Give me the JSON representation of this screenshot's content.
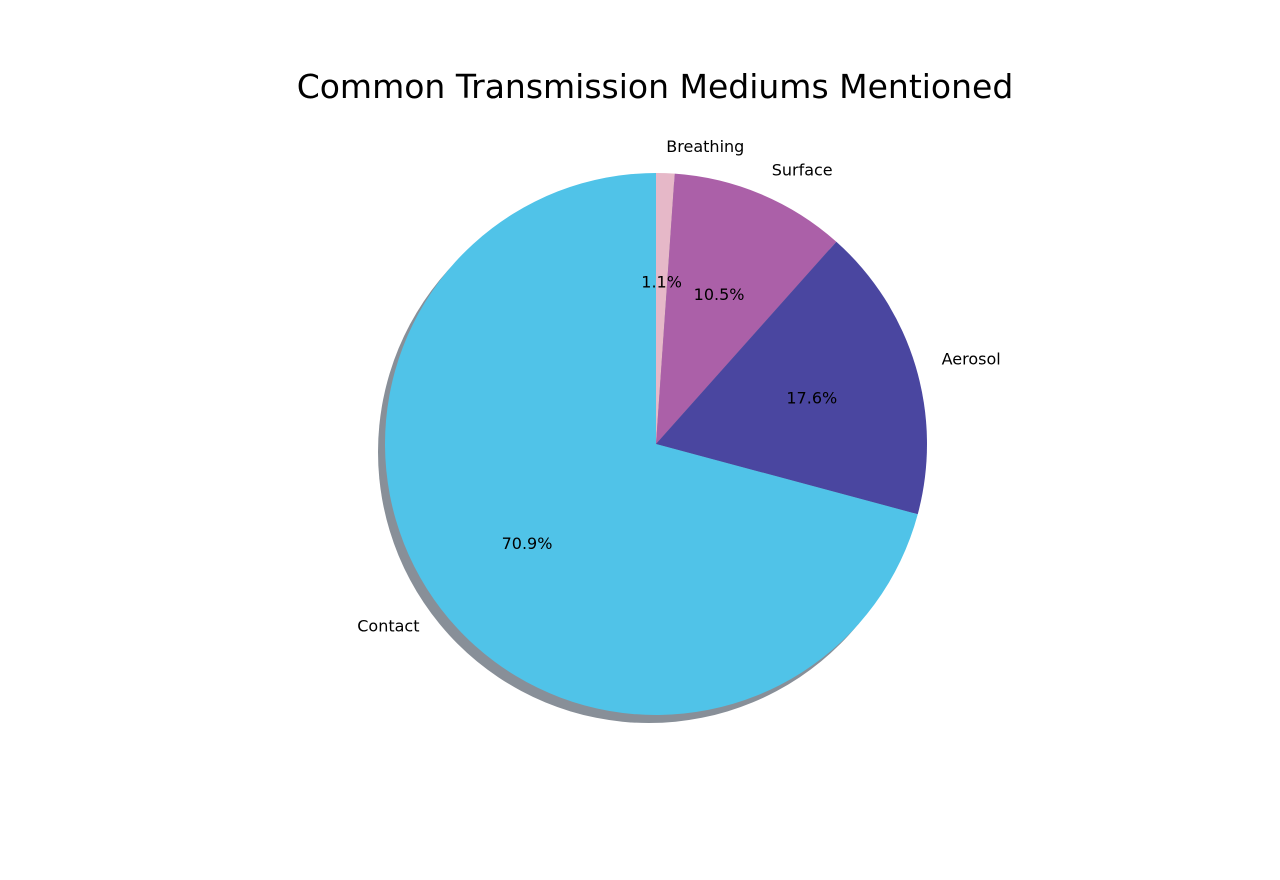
{
  "chart_data": {
    "type": "pie",
    "title": "Common Transmission Mediums Mentioned",
    "start_angle_deg": 90,
    "direction": "clockwise",
    "shadow": true,
    "slices": [
      {
        "label": "Breathing",
        "value": 1.1,
        "pct_label": "1.1%",
        "color": "#e6b8c8"
      },
      {
        "label": "Surface",
        "value": 10.5,
        "pct_label": "10.5%",
        "color": "#ab60a8"
      },
      {
        "label": "Aerosol",
        "value": 17.6,
        "pct_label": "17.6%",
        "color": "#4a46a0"
      },
      {
        "label": "Contact",
        "value": 70.9,
        "pct_label": "70.9%",
        "color": "#50c3e8"
      }
    ]
  }
}
